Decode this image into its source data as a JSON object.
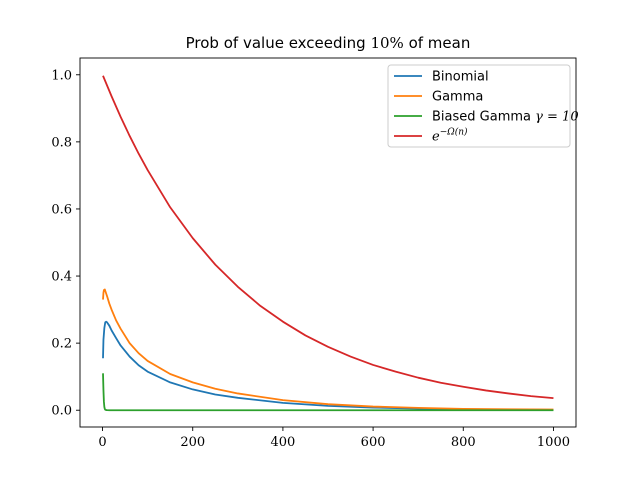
{
  "chart_data": {
    "type": "line",
    "title_prefix": "Prob of value exceeding ",
    "title_math": "10%",
    "title_suffix": " of mean",
    "xlabel": "",
    "ylabel": "",
    "xlim": [
      -50,
      1050
    ],
    "ylim": [
      -0.05,
      1.05
    ],
    "xticks": [
      0,
      200,
      400,
      600,
      800,
      1000
    ],
    "xtick_labels": [
      "0",
      "200",
      "400",
      "600",
      "800",
      "1000"
    ],
    "yticks": [
      0.0,
      0.2,
      0.4,
      0.6,
      0.8,
      1.0
    ],
    "ytick_labels": [
      "0.0",
      "0.2",
      "0.4",
      "0.6",
      "0.8",
      "1.0"
    ],
    "grid": false,
    "legend_position": "top-right",
    "series": [
      {
        "name": "Binomial",
        "color": "#1f77b4",
        "x": [
          1,
          2,
          4,
          6,
          8,
          10,
          15,
          20,
          30,
          40,
          60,
          80,
          100,
          150,
          200,
          250,
          300,
          400,
          500,
          600,
          700,
          800,
          900,
          1000
        ],
        "y": [
          0.155,
          0.21,
          0.245,
          0.262,
          0.264,
          0.262,
          0.252,
          0.238,
          0.215,
          0.193,
          0.16,
          0.134,
          0.115,
          0.083,
          0.062,
          0.047,
          0.037,
          0.022,
          0.013,
          0.008,
          0.005,
          0.003,
          0.002,
          0.001
        ]
      },
      {
        "name": "Gamma",
        "color": "#ff7f0e",
        "x": [
          1,
          2,
          3,
          5,
          7,
          10,
          15,
          20,
          30,
          40,
          60,
          80,
          100,
          150,
          200,
          250,
          300,
          400,
          500,
          600,
          700,
          800,
          900,
          1000
        ],
        "y": [
          0.33,
          0.35,
          0.358,
          0.36,
          0.352,
          0.34,
          0.318,
          0.3,
          0.268,
          0.243,
          0.2,
          0.17,
          0.147,
          0.108,
          0.083,
          0.064,
          0.05,
          0.03,
          0.018,
          0.011,
          0.007,
          0.004,
          0.003,
          0.002
        ]
      },
      {
        "name": "Biased Gamma",
        "name_math": "γ = 10",
        "color": "#2ca02c",
        "x": [
          1,
          2,
          3,
          4,
          5,
          6,
          8,
          10,
          15,
          20,
          50,
          100,
          200,
          400,
          600,
          800,
          1000
        ],
        "y": [
          0.11,
          0.06,
          0.025,
          0.01,
          0.004,
          0.0015,
          0.0005,
          0.0002,
          0.0,
          0.0,
          0.0,
          0.0,
          0.0,
          0.0,
          0.0,
          0.0,
          0.0
        ]
      },
      {
        "name": "e",
        "name_sup": "−Ω(n)",
        "color": "#d62728",
        "x": [
          1,
          20,
          40,
          60,
          80,
          100,
          150,
          200,
          250,
          300,
          350,
          400,
          450,
          500,
          550,
          600,
          650,
          700,
          750,
          800,
          850,
          900,
          950,
          1000
        ],
        "y": [
          0.997,
          0.936,
          0.875,
          0.818,
          0.765,
          0.716,
          0.605,
          0.513,
          0.434,
          0.368,
          0.311,
          0.264,
          0.223,
          0.189,
          0.16,
          0.135,
          0.115,
          0.097,
          0.082,
          0.07,
          0.059,
          0.05,
          0.042,
          0.036
        ]
      }
    ]
  }
}
